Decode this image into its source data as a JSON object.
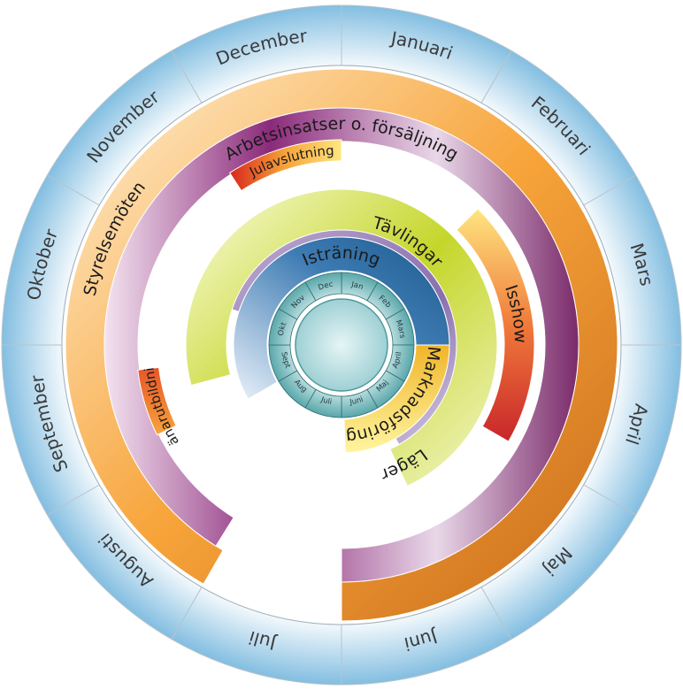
{
  "outer_months": [
    "Januari",
    "Februari",
    "Mars",
    "April",
    "Maj",
    "Juni",
    "Juli",
    "Augusti",
    "September",
    "Oktober",
    "November",
    "December"
  ],
  "inner_months": [
    "Jan",
    "Feb",
    "Mars",
    "April",
    "Maj",
    "Juni",
    "Juli",
    "Aug",
    "Sept",
    "Okt",
    "Nov",
    "Dec"
  ],
  "activities": {
    "styrelsemoten": "Styrelsemöten",
    "arbetsinsatser": "Arbetsinsatser o. försäljning",
    "julavslutning": "Julavslutning",
    "isshow": "Isshow",
    "tavlingar": "Tävlingar",
    "istraning": "Isträning",
    "marknadsforing": "Marknadsföring",
    "lager": "Läger",
    "tranarutbildning": "Tränarutbildning"
  },
  "colors": {
    "month_blue": "#8cc4e4",
    "teal": "#4f9a9c",
    "orange": "#f29a2e",
    "purple": "#8b2a7a",
    "lime": "#c5d62a",
    "navy": "#1c5a8c",
    "red": "#c8262a",
    "yellow": "#f1c22e"
  }
}
